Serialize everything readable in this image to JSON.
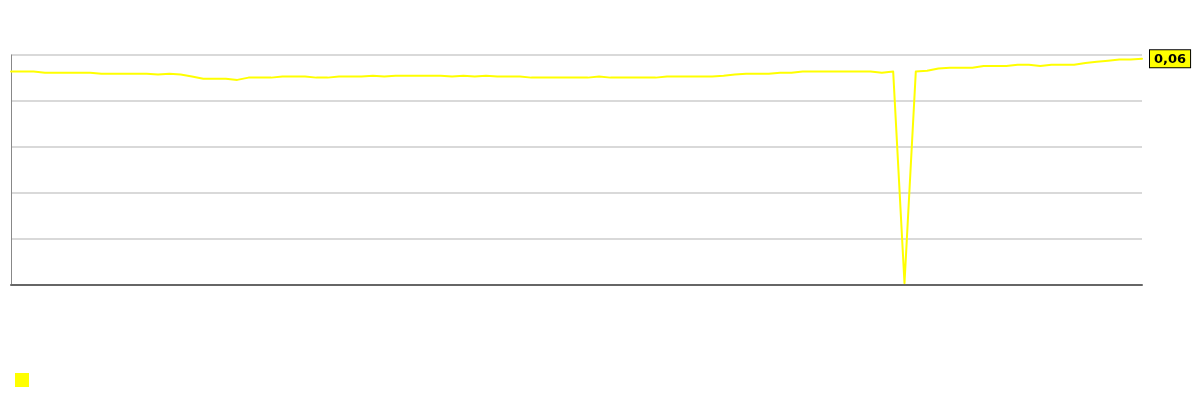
{
  "chart_data": {
    "type": "line",
    "categories": [
      null,
      null,
      null,
      null,
      null,
      null,
      null,
      null,
      null,
      null,
      null,
      null,
      null,
      null,
      null,
      null,
      null,
      null,
      null,
      null,
      null,
      null,
      null,
      null,
      null,
      null,
      null,
      null,
      null,
      null,
      null,
      null,
      null,
      null,
      null,
      null,
      null,
      null,
      null,
      null,
      null,
      null,
      null,
      null,
      null,
      null,
      null,
      null,
      null,
      null,
      null,
      null,
      null,
      null,
      null,
      null,
      null,
      null,
      null,
      null,
      null,
      null,
      null,
      null,
      null,
      null,
      null,
      null,
      null,
      null,
      null,
      null,
      null,
      null,
      null,
      null,
      null,
      null,
      null,
      null,
      null,
      null,
      null,
      null,
      null,
      null,
      null,
      null,
      null,
      null,
      null,
      null,
      null,
      null,
      null,
      null,
      null,
      null,
      null,
      null,
      null
    ],
    "series": [
      {
        "color": "#ffff00",
        "values": [
          0.0566,
          0.0566,
          0.0566,
          0.0563,
          0.0563,
          0.0563,
          0.0563,
          0.0563,
          0.056,
          0.056,
          0.056,
          0.056,
          0.056,
          0.0558,
          0.056,
          0.0558,
          0.0553,
          0.0547,
          0.0547,
          0.0547,
          0.0544,
          0.055,
          0.055,
          0.055,
          0.0553,
          0.0553,
          0.0553,
          0.055,
          0.055,
          0.0553,
          0.0553,
          0.0553,
          0.0555,
          0.0553,
          0.0555,
          0.0555,
          0.0555,
          0.0555,
          0.0555,
          0.0553,
          0.0555,
          0.0553,
          0.0555,
          0.0553,
          0.0553,
          0.0553,
          0.055,
          0.055,
          0.055,
          0.055,
          0.055,
          0.055,
          0.0553,
          0.055,
          0.055,
          0.055,
          0.055,
          0.055,
          0.0553,
          0.0553,
          0.0553,
          0.0553,
          0.0553,
          0.0555,
          0.0558,
          0.056,
          0.056,
          0.056,
          0.0563,
          0.0563,
          0.0566,
          0.0566,
          0.0566,
          0.0566,
          0.0566,
          0.0566,
          0.0566,
          0.0563,
          0.0566,
          0.0005,
          0.0566,
          0.0568,
          0.0574,
          0.0576,
          0.0576,
          0.0576,
          0.0581,
          0.0581,
          0.0581,
          0.0584,
          0.0584,
          0.0581,
          0.0584,
          0.0584,
          0.0584,
          0.0589,
          0.0592,
          0.0595,
          0.0598,
          0.0598,
          0.06
        ],
        "value_labels": [
          null,
          null,
          null,
          null,
          null,
          null,
          null,
          null,
          null,
          null,
          null,
          null,
          null,
          null,
          null,
          null,
          null,
          null,
          null,
          null,
          null,
          null,
          null,
          null,
          null,
          null,
          null,
          null,
          null,
          null,
          null,
          null,
          null,
          null,
          null,
          null,
          null,
          null,
          null,
          null,
          null,
          null,
          null,
          null,
          null,
          null,
          null,
          null,
          null,
          null,
          null,
          null,
          null,
          null,
          null,
          null,
          null,
          null,
          null,
          null,
          null,
          null,
          null,
          null,
          null,
          null,
          null,
          null,
          null,
          null,
          null,
          null,
          null,
          null,
          null,
          null,
          null,
          null,
          null,
          null,
          null,
          null,
          null,
          null,
          null,
          null,
          null,
          null,
          null,
          null,
          null,
          null,
          null,
          null,
          null,
          null,
          null,
          null,
          null,
          null,
          "0,06"
        ]
      }
    ],
    "ylim": [
      0,
      0.061
    ],
    "yticks": [
      {
        "value": 0,
        "label": null
      },
      {
        "value": 0.0122,
        "label": null
      },
      {
        "value": 0.0244,
        "label": null
      },
      {
        "value": 0.0366,
        "label": null
      },
      {
        "value": 0.0488,
        "label": null
      },
      {
        "value": 0.061,
        "label": null
      }
    ],
    "grid": "y",
    "marker": "none",
    "line_style": "solid"
  }
}
